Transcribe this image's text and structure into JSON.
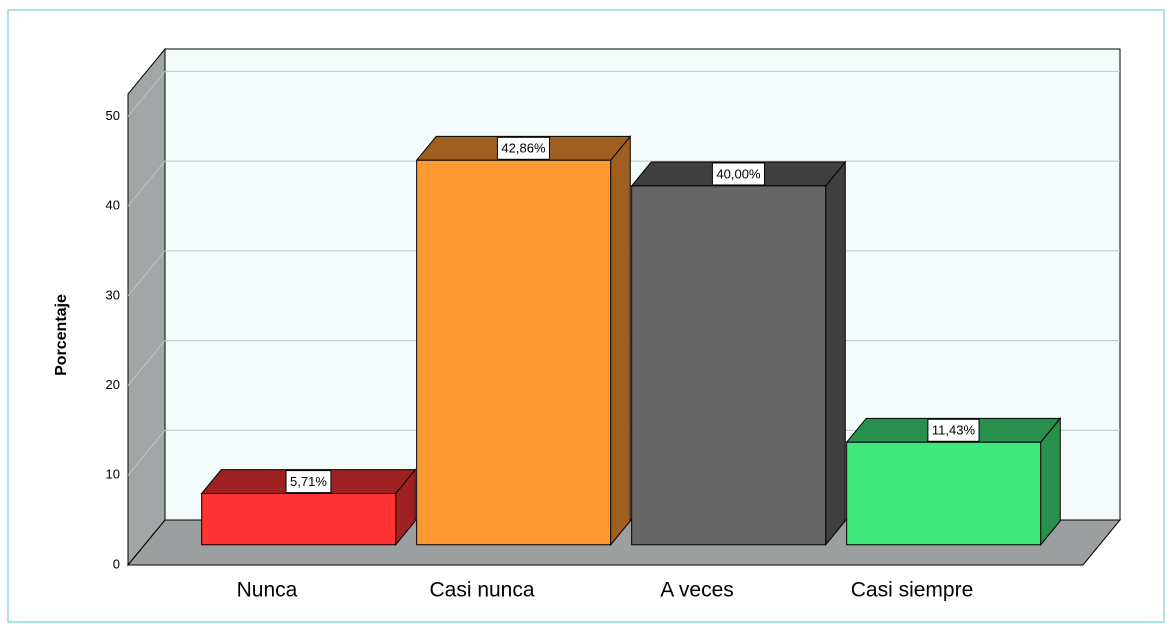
{
  "chart_data": {
    "type": "bar3d",
    "y_label": "Porcentaje",
    "categories": [
      "Nunca",
      "Casi nunca",
      "A veces",
      "Casi siempre"
    ],
    "values": [
      5.71,
      42.86,
      40.0,
      11.43
    ],
    "value_labels": [
      "5,71%",
      "42,86%",
      "40,00%",
      "11,43%"
    ],
    "colors": [
      "#ff3333",
      "#ff9933",
      "#666666",
      "#40e87c"
    ],
    "ylim": [
      0,
      52.5
    ],
    "yticks": [
      0,
      10,
      20,
      30,
      40,
      50
    ],
    "grid": true
  }
}
